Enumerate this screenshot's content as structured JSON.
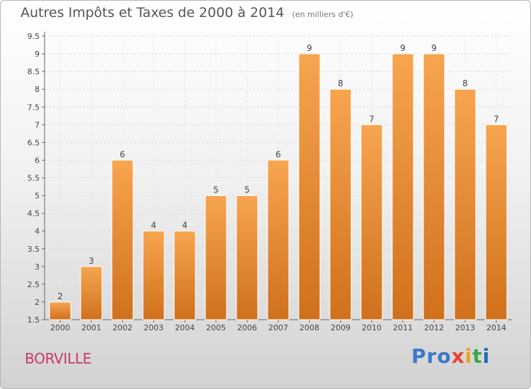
{
  "title": "Autres Impôts et Taxes de 2000 à 2014",
  "subtitle": "(en milliers d'€)",
  "commune": "BORVILLE",
  "logo": {
    "p1": "Pro",
    "p2": "x",
    "p3": "i",
    "p4": "t",
    "p5": "i"
  },
  "colors": {
    "bar_top": "#f7a54f",
    "bar_bottom": "#d0701c",
    "commune": "#c8386e"
  },
  "chart_data": {
    "type": "bar",
    "categories": [
      "2000",
      "2001",
      "2002",
      "2003",
      "2004",
      "2005",
      "2006",
      "2007",
      "2008",
      "2009",
      "2010",
      "2011",
      "2012",
      "2013",
      "2014"
    ],
    "values": [
      2,
      3,
      6,
      4,
      4,
      5,
      5,
      6,
      9,
      8,
      7,
      9,
      9,
      8,
      7
    ],
    "ylim": [
      1.5,
      9.5
    ],
    "yticks": [
      1.5,
      2,
      2.5,
      3,
      3.5,
      4,
      4.5,
      5,
      5.5,
      6,
      6.5,
      7,
      7.5,
      8,
      8.5,
      9,
      9.5
    ],
    "title": "Autres Impôts et Taxes de 2000 à 2014",
    "subtitle": "(en milliers d'€)",
    "grid": true
  }
}
